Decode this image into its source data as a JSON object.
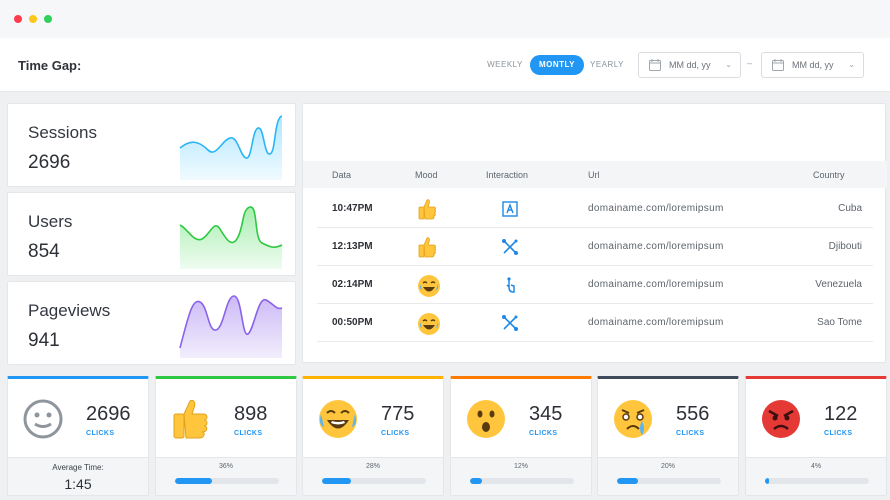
{
  "header": {
    "time_gap_label": "Time Gap:",
    "periods": [
      "WEEKLY",
      "MONTLY",
      "YEARLY"
    ],
    "active_period": "MONTLY",
    "date_from_placeholder": "MM dd, yy",
    "date_to_placeholder": "MM dd, yy",
    "date_separator": "–"
  },
  "stats": [
    {
      "label": "Sessions",
      "value": "2696",
      "color": "#29b6f6"
    },
    {
      "label": "Users",
      "value": "854",
      "color": "#2ec842"
    },
    {
      "label": "Pageviews",
      "value": "941",
      "color": "#8a63e8"
    }
  ],
  "table": {
    "columns": [
      "Data",
      "Mood",
      "Interaction",
      "Url",
      "Country"
    ],
    "rows": [
      {
        "time": "10:47PM",
        "mood": "thumbs-up-icon",
        "interaction": "touch-frame-icon",
        "url": "domainame.com/loremipsum",
        "country": "Cuba"
      },
      {
        "time": "12:13PM",
        "mood": "thumbs-up-icon",
        "interaction": "pinch-icon",
        "url": "domainame.com/loremipsum",
        "country": "Djibouti"
      },
      {
        "time": "02:14PM",
        "mood": "laughing-emoji-icon",
        "interaction": "tap-icon",
        "url": "domainame.com/loremipsum",
        "country": "Venezuela"
      },
      {
        "time": "00:50PM",
        "mood": "laughing-emoji-icon",
        "interaction": "pinch-icon",
        "url": "domainame.com/loremipsum",
        "country": "Sao Tome"
      }
    ]
  },
  "moods": [
    {
      "icon": "neutral-face-icon",
      "count": "2696",
      "clicks_label": "CLICKS",
      "accent": "#2196f3",
      "footer_label": "Average Time:",
      "footer_value": "1:45"
    },
    {
      "icon": "thumbs-up-icon",
      "count": "898",
      "clicks_label": "CLICKS",
      "accent": "#2ec842",
      "percent_label": "36%",
      "percent": 36
    },
    {
      "icon": "laughing-emoji-icon",
      "count": "775",
      "clicks_label": "CLICKS",
      "accent": "#ffb300",
      "percent_label": "28%",
      "percent": 28
    },
    {
      "icon": "surprised-emoji-icon",
      "count": "345",
      "clicks_label": "CLICKS",
      "accent": "#ff7a00",
      "percent_label": "12%",
      "percent": 12
    },
    {
      "icon": "crying-emoji-icon",
      "count": "556",
      "clicks_label": "CLICKS",
      "accent": "#3f4a5a",
      "percent_label": "20%",
      "percent": 20
    },
    {
      "icon": "angry-emoji-icon",
      "count": "122",
      "clicks_label": "CLICKS",
      "accent": "#e53935",
      "percent_label": "4%",
      "percent": 4
    }
  ]
}
